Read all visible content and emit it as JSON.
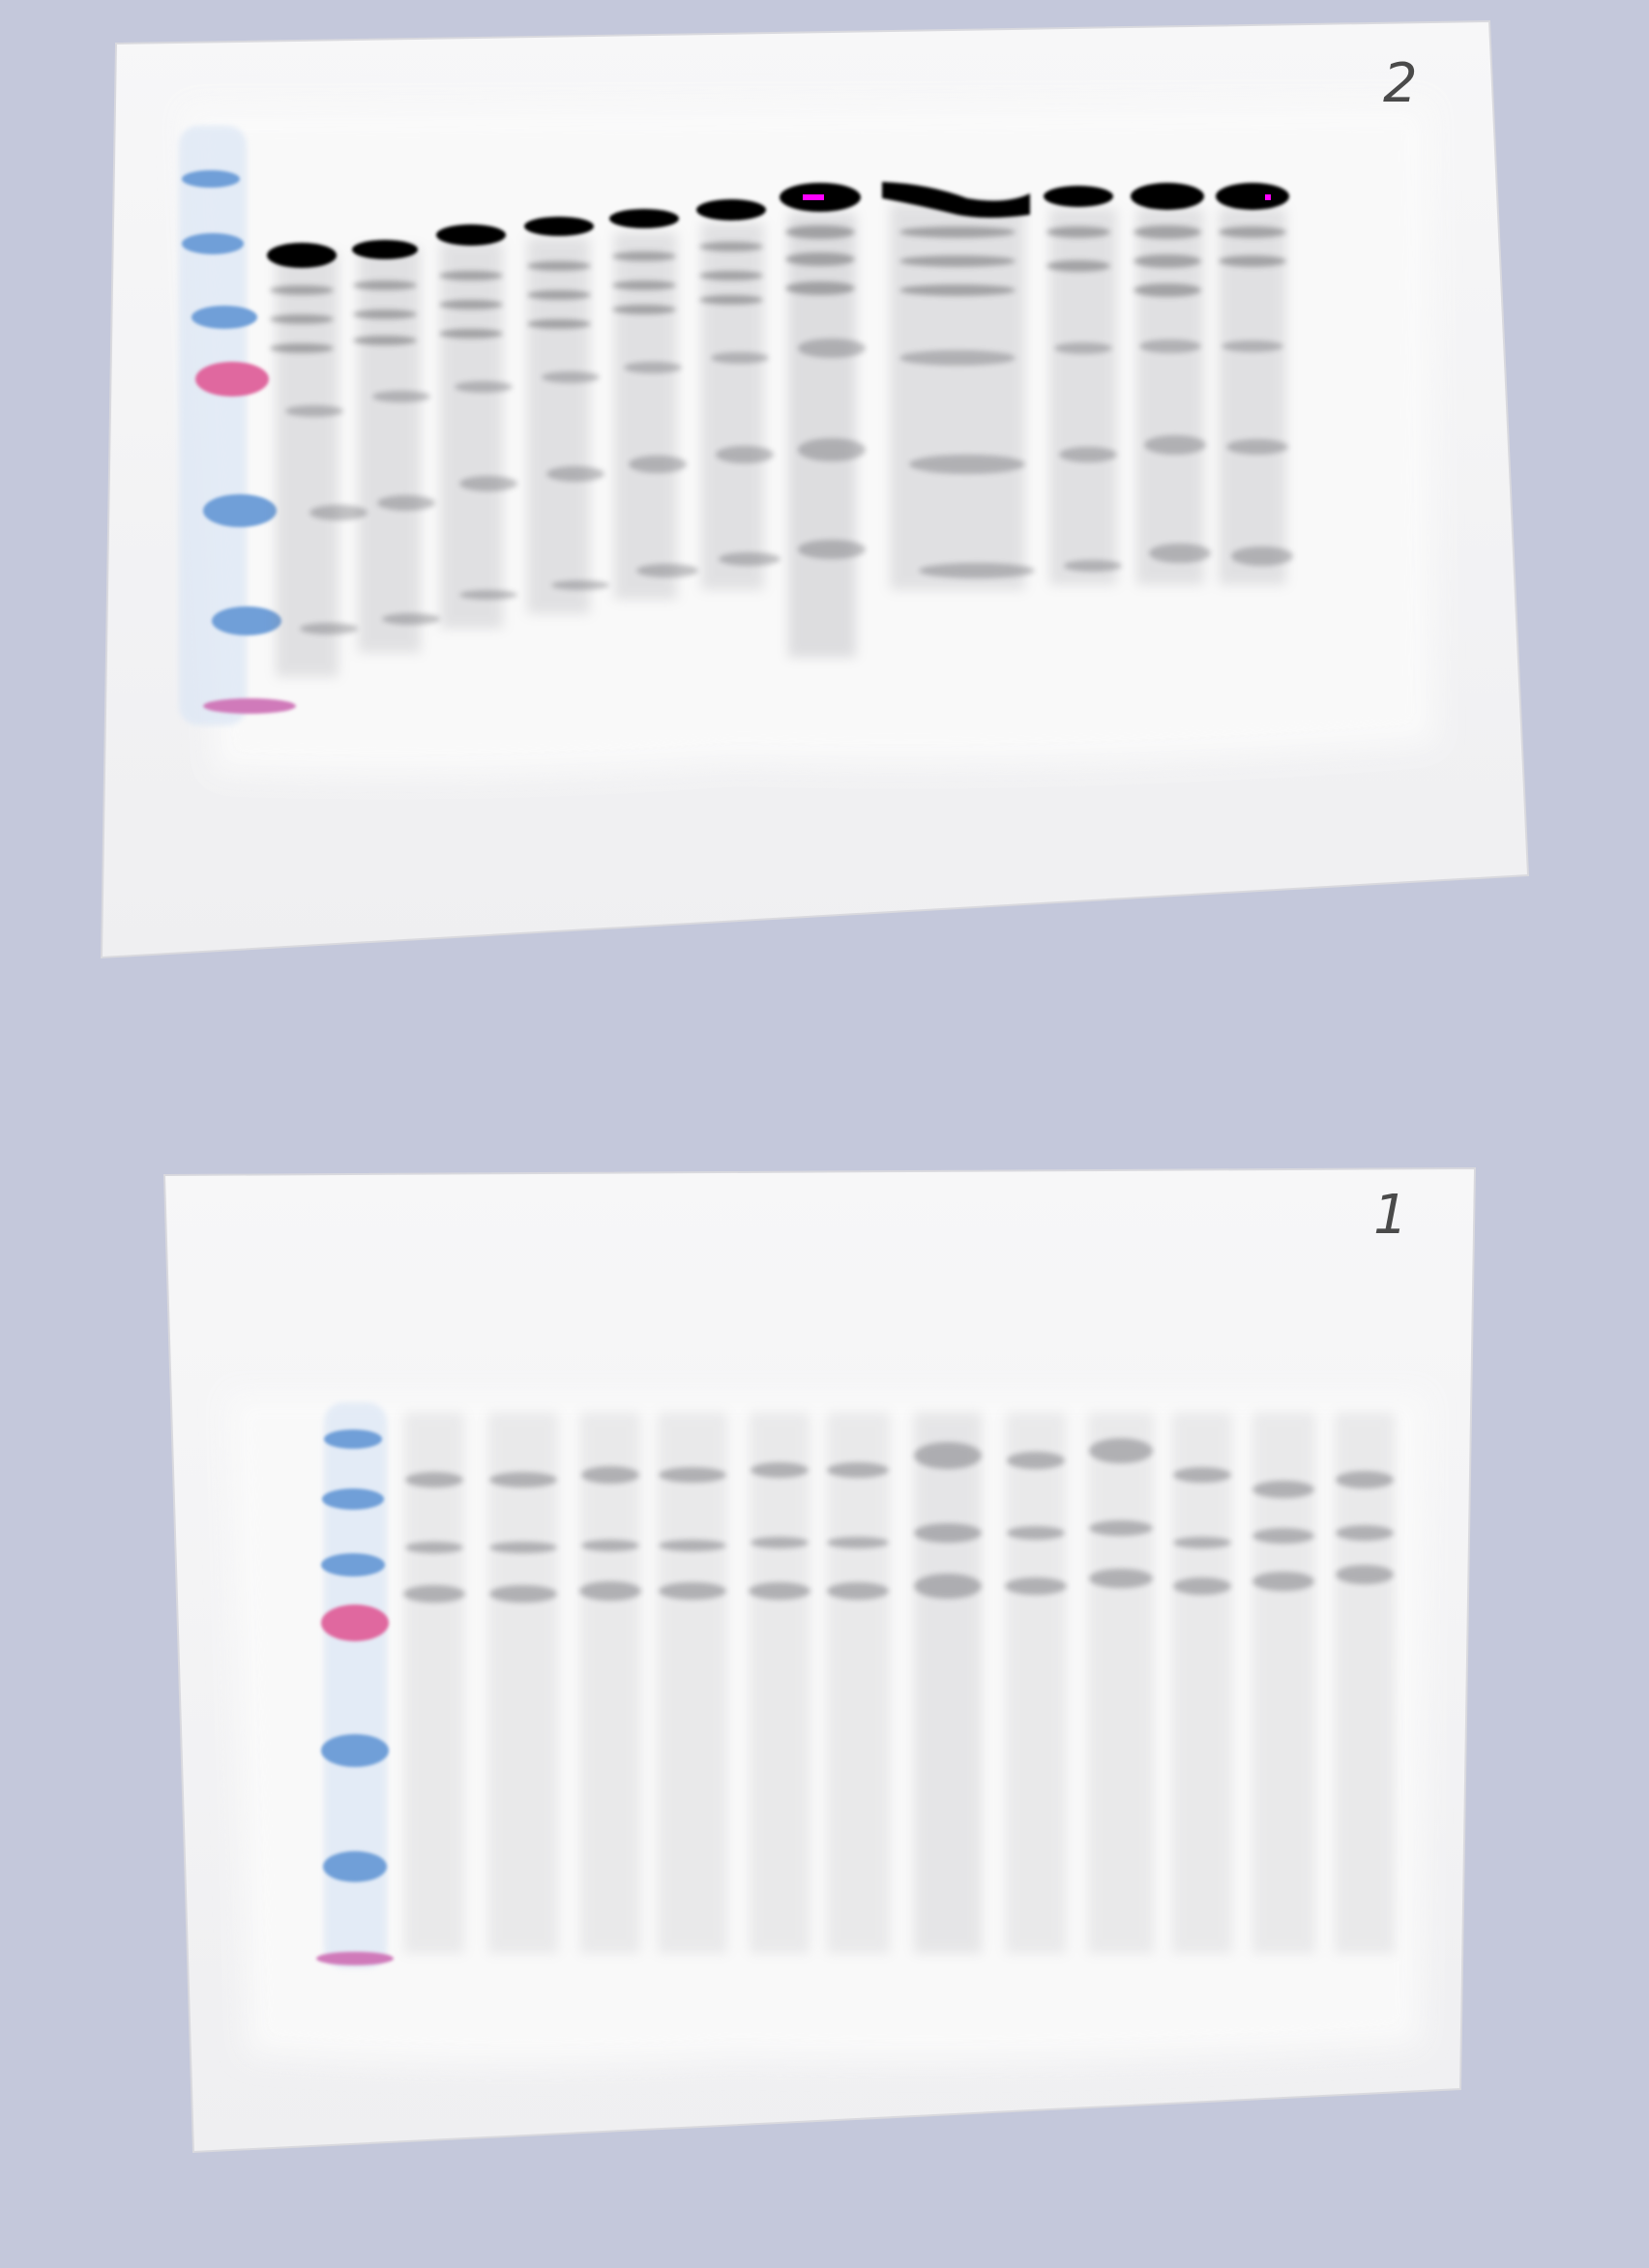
{
  "scene": {
    "background_color": "#c4c8db",
    "membrane_color": "#f3f3f4",
    "ladder_blue": "#6f9fd8",
    "ladder_pink": "#e0679f",
    "band_color": "#000000"
  },
  "membranes": [
    {
      "id": "membrane-top",
      "label": "2",
      "lane_count": 12,
      "ladder_band_count": 7,
      "contrast": "high"
    },
    {
      "id": "membrane-bottom",
      "label": "1",
      "lane_count": 12,
      "ladder_band_count": 7,
      "contrast": "low"
    }
  ]
}
